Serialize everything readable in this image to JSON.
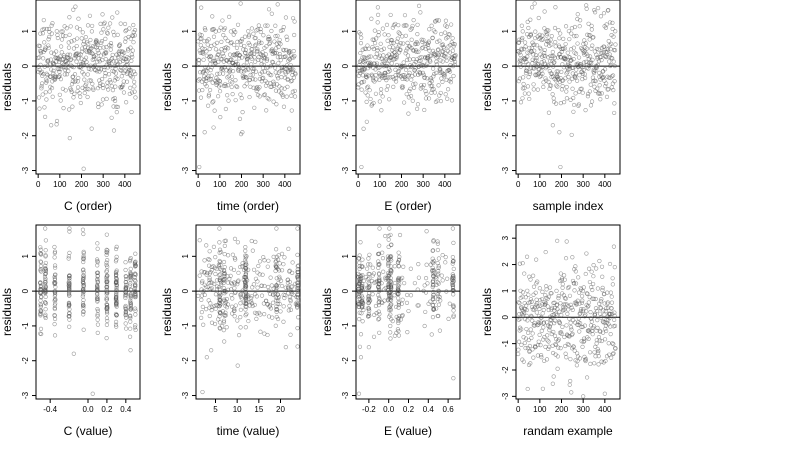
{
  "chart_data": [
    {
      "type": "scatter",
      "title": "",
      "xlabel": "C (order)",
      "ylabel": "residuals",
      "xlim": [
        -10,
        470
      ],
      "ylim": [
        -3.1,
        1.9
      ],
      "xticks": [
        0,
        100,
        200,
        300,
        400
      ],
      "xtick_labels": [
        "0",
        "100",
        "200",
        "300",
        "400"
      ],
      "yticks": [
        -3,
        -2,
        -1,
        0,
        1
      ],
      "ytick_labels": [
        "-3",
        "-2",
        "-1",
        "0",
        "1"
      ],
      "reference_line": 0,
      "grid": false,
      "legend": "none",
      "series": [
        {
          "x_mode": "index",
          "n": 450,
          "sd": 0.62,
          "bias": 0.1,
          "outliers": [
            [
              210,
              -2.95
            ],
            [
              60,
              -1.7
            ],
            [
              350,
              -1.85
            ]
          ]
        }
      ]
    },
    {
      "type": "scatter",
      "title": "",
      "xlabel": "time (order)",
      "ylabel": "residuals",
      "xlim": [
        -10,
        470
      ],
      "ylim": [
        -3.1,
        1.9
      ],
      "xticks": [
        0,
        100,
        200,
        300,
        400
      ],
      "xtick_labels": [
        "0",
        "100",
        "200",
        "300",
        "400"
      ],
      "yticks": [
        -3,
        -2,
        -1,
        0,
        1
      ],
      "ytick_labels": [
        "-3",
        "-2",
        "-1",
        "0",
        "1"
      ],
      "reference_line": 0,
      "grid": false,
      "legend": "none",
      "series": [
        {
          "x_mode": "index",
          "n": 450,
          "sd": 0.62,
          "bias": 0.1,
          "outliers": [
            [
              5,
              -2.9
            ],
            [
              30,
              -1.9
            ],
            [
              420,
              -1.8
            ]
          ]
        }
      ]
    },
    {
      "type": "scatter",
      "title": "",
      "xlabel": "E (order)",
      "ylabel": "residuals",
      "xlim": [
        -10,
        470
      ],
      "ylim": [
        -3.1,
        1.9
      ],
      "xticks": [
        0,
        100,
        200,
        300,
        400
      ],
      "xtick_labels": [
        "0",
        "100",
        "200",
        "300",
        "400"
      ],
      "yticks": [
        -3,
        -2,
        -1,
        0,
        1
      ],
      "ytick_labels": [
        "-3",
        "-2",
        "-1",
        "0",
        "1"
      ],
      "reference_line": 0,
      "grid": false,
      "legend": "none",
      "series": [
        {
          "x_mode": "index",
          "n": 450,
          "sd": 0.62,
          "bias": 0.1,
          "outliers": [
            [
              15,
              -2.9
            ],
            [
              25,
              -1.8
            ],
            [
              40,
              -1.6
            ]
          ]
        }
      ]
    },
    {
      "type": "scatter",
      "title": "",
      "xlabel": "sample index",
      "ylabel": "residuals",
      "xlim": [
        -10,
        470
      ],
      "ylim": [
        -3.1,
        1.9
      ],
      "xticks": [
        0,
        100,
        200,
        300,
        400
      ],
      "xtick_labels": [
        "0",
        "100",
        "200",
        "300",
        "400"
      ],
      "yticks": [
        -3,
        -2,
        -1,
        0,
        1
      ],
      "ytick_labels": [
        "-3",
        "-2",
        "-1",
        "0",
        "1"
      ],
      "reference_line": 0,
      "grid": false,
      "legend": "none",
      "series": [
        {
          "x_mode": "index",
          "n": 450,
          "sd": 0.62,
          "bias": 0.1,
          "outliers": [
            [
              195,
              -2.9
            ],
            [
              190,
              -1.9
            ],
            [
              160,
              -1.7
            ]
          ]
        }
      ]
    },
    {
      "type": "scatter",
      "title": "",
      "xlabel": "C (value)",
      "ylabel": "residuals",
      "xlim": [
        -0.55,
        0.55
      ],
      "ylim": [
        -3.1,
        1.9
      ],
      "xticks": [
        -0.4,
        0.0,
        0.2,
        0.4
      ],
      "xtick_labels": [
        "-0.4",
        "0.0",
        "0.2",
        "0.4"
      ],
      "yticks": [
        -3,
        -2,
        -1,
        0,
        1
      ],
      "ytick_labels": [
        "-3",
        "-2",
        "-1",
        "0",
        "1"
      ],
      "reference_line": 0,
      "grid": false,
      "legend": "none",
      "series": [
        {
          "x_mode": "discrete",
          "n": 450,
          "sd": 0.62,
          "bias": 0.1,
          "levels": [
            -0.5,
            -0.45,
            -0.35,
            -0.2,
            -0.05,
            0.1,
            0.2,
            0.3,
            0.4,
            0.45,
            0.5
          ],
          "outliers": [
            [
              0.05,
              -2.95
            ],
            [
              -0.15,
              -1.8
            ],
            [
              0.45,
              -1.7
            ]
          ]
        }
      ]
    },
    {
      "type": "scatter",
      "title": "",
      "xlabel": "time (value)",
      "ylabel": "residuals",
      "xlim": [
        0.5,
        24.5
      ],
      "ylim": [
        -3.1,
        1.9
      ],
      "xticks": [
        5,
        10,
        15,
        20
      ],
      "xtick_labels": [
        "5",
        "10",
        "15",
        "20"
      ],
      "yticks": [
        -3,
        -2,
        -1,
        0,
        1
      ],
      "ytick_labels": [
        "-3",
        "-2",
        "-1",
        "0",
        "1"
      ],
      "reference_line": 0,
      "grid": false,
      "legend": "none",
      "series": [
        {
          "x_mode": "uniform",
          "n": 450,
          "sd": 0.62,
          "bias": 0.1,
          "dense": [
            6,
            7,
            12,
            19,
            24
          ],
          "outliers": [
            [
              2,
              -2.9
            ],
            [
              3,
              -1.9
            ],
            [
              4,
              -1.7
            ]
          ]
        }
      ]
    },
    {
      "type": "scatter",
      "title": "",
      "xlabel": "E (value)",
      "ylabel": "residuals",
      "xlim": [
        -0.33,
        0.72
      ],
      "ylim": [
        -3.1,
        1.9
      ],
      "xticks": [
        -0.2,
        0.0,
        0.2,
        0.4,
        0.6
      ],
      "xtick_labels": [
        "-0.2",
        "0.0",
        "0.2",
        "0.4",
        "0.6"
      ],
      "yticks": [
        -3,
        -2,
        -1,
        0,
        1
      ],
      "ytick_labels": [
        "-3",
        "-2",
        "-1",
        "0",
        "1"
      ],
      "reference_line": 0,
      "grid": false,
      "legend": "none",
      "series": [
        {
          "x_mode": "skewed",
          "n": 450,
          "sd": 0.62,
          "bias": 0.1,
          "levels": [
            -0.3,
            -0.27,
            -0.2,
            -0.1,
            0.0,
            0.02,
            0.1,
            0.45,
            0.5,
            0.65
          ],
          "outliers": [
            [
              -0.3,
              -2.95
            ],
            [
              -0.28,
              -1.9
            ],
            [
              -0.29,
              -1.6
            ]
          ]
        }
      ]
    },
    {
      "type": "scatter",
      "title": "",
      "xlabel": "randam example",
      "ylabel": "residuals",
      "xlim": [
        -10,
        470
      ],
      "ylim": [
        -3.1,
        3.5
      ],
      "xticks": [
        0,
        100,
        200,
        300,
        400
      ],
      "xtick_labels": [
        "0",
        "100",
        "200",
        "300",
        "400"
      ],
      "yticks": [
        -3,
        -2,
        -1,
        0,
        1,
        2,
        3
      ],
      "ytick_labels": [
        "-3",
        "-2",
        "-1",
        "0",
        "1",
        "2",
        "3"
      ],
      "reference_line": 0,
      "grid": false,
      "legend": "none",
      "series": [
        {
          "x_mode": "index",
          "n": 450,
          "sd": 1.0,
          "bias": 0.0,
          "outliers": [
            [
              300,
              -3.0
            ],
            [
              400,
              -2.9
            ],
            [
              180,
              2.9
            ]
          ]
        }
      ]
    }
  ]
}
